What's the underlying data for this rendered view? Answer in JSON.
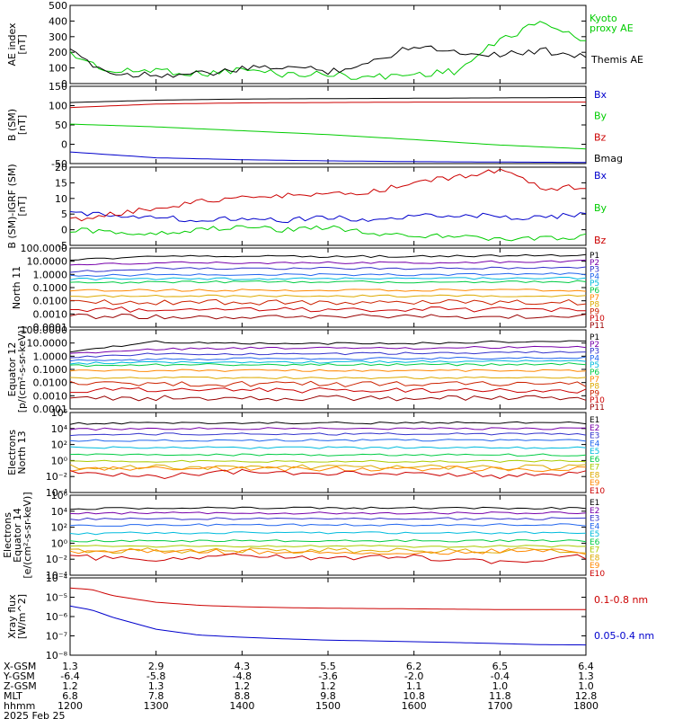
{
  "chart_data": [
    {
      "type": "line",
      "ylabel": [
        "AE index",
        "[nT]"
      ],
      "ylim": [
        0,
        500
      ],
      "yticks": [
        "500",
        "400",
        "300",
        "200",
        "100",
        "0"
      ],
      "yscale": "linear",
      "x": [
        12.0,
        12.5,
        13.0,
        13.5,
        14.0,
        14.5,
        15.0,
        15.5,
        16.0,
        16.5,
        17.0,
        17.5,
        18.0
      ],
      "series": [
        {
          "name": "Kyoto proxy AE",
          "color": "#00cc00",
          "values": [
            190,
            70,
            90,
            60,
            90,
            60,
            60,
            40,
            60,
            80,
            280,
            400,
            260
          ]
        },
        {
          "name": "Themis AE",
          "color": "#000000",
          "values": [
            200,
            60,
            60,
            60,
            90,
            110,
            80,
            130,
            250,
            200,
            190,
            210,
            180
          ]
        }
      ]
    },
    {
      "type": "line",
      "ylabel": [
        "B (SM)",
        "[nT]"
      ],
      "ylim": [
        -50,
        150
      ],
      "yticks": [
        "150",
        "100",
        "50",
        "0",
        "-50"
      ],
      "yscale": "linear",
      "x": [
        12.0,
        13.0,
        14.0,
        15.0,
        16.0,
        17.0,
        18.0
      ],
      "series": [
        {
          "name": "Bx",
          "color": "#0000cc",
          "values": [
            -20,
            -35,
            -40,
            -43,
            -45,
            -46,
            -47
          ]
        },
        {
          "name": "By",
          "color": "#00cc00",
          "values": [
            52,
            45,
            35,
            25,
            12,
            -2,
            -12
          ]
        },
        {
          "name": "Bz",
          "color": "#cc0000",
          "values": [
            95,
            104,
            107,
            108,
            109,
            109,
            109
          ]
        },
        {
          "name": "Bmag",
          "color": "#000000",
          "values": [
            108,
            114,
            117,
            118,
            119,
            120,
            121
          ]
        }
      ]
    },
    {
      "type": "line",
      "ylabel": [
        "B (SM)-IGRF (SM)",
        "[nT]"
      ],
      "ylim": [
        -5,
        20
      ],
      "yticks": [
        "20",
        "15",
        "10",
        "5",
        "0",
        "-5"
      ],
      "yscale": "linear",
      "x": [
        12.0,
        12.5,
        13.0,
        13.5,
        14.0,
        14.5,
        15.0,
        15.5,
        16.0,
        16.5,
        17.0,
        17.5,
        18.0
      ],
      "series": [
        {
          "name": "Bx",
          "color": "#0000cc",
          "values": [
            5,
            5,
            4,
            3,
            4,
            3,
            4,
            3,
            4,
            5,
            4,
            4,
            5
          ]
        },
        {
          "name": "By",
          "color": "#00cc00",
          "values": [
            0,
            -1,
            -1,
            0,
            1,
            0,
            1,
            -1,
            -2,
            -2,
            -3,
            -3,
            -2
          ]
        },
        {
          "name": "Bz",
          "color": "#cc0000",
          "values": [
            3,
            5,
            7,
            9,
            10,
            11,
            11,
            12,
            15,
            17,
            19,
            13,
            14
          ]
        }
      ]
    },
    {
      "type": "line",
      "ylabel": [
        "North 11"
      ],
      "ylim": [
        5e-05,
        200
      ],
      "yticks": [
        "100.0000",
        "10.0000",
        "1.0000",
        "0.1000",
        "0.0100",
        "0.0010",
        "0.0001"
      ],
      "yscale": "log",
      "x": [
        12.0,
        13.0,
        14.0,
        15.0,
        16.0,
        17.0,
        18.0
      ],
      "series": [
        {
          "name": "P1",
          "color": "#000000",
          "values": [
            20,
            45,
            40,
            40,
            40,
            45,
            50
          ]
        },
        {
          "name": "P2",
          "color": "#7700aa",
          "values": [
            8,
            12,
            12,
            12,
            12,
            14,
            16
          ]
        },
        {
          "name": "P3",
          "color": "#3333cc",
          "values": [
            2,
            4,
            4,
            4,
            4,
            4.5,
            5
          ]
        },
        {
          "name": "P4",
          "color": "#2266ee",
          "values": [
            1.0,
            1.2,
            1.2,
            1.2,
            1.2,
            1.3,
            1.4
          ]
        },
        {
          "name": "P5",
          "color": "#00bbdd",
          "values": [
            0.5,
            0.55,
            0.55,
            0.55,
            0.55,
            0.6,
            0.6
          ]
        },
        {
          "name": "P6",
          "color": "#00cc44",
          "values": [
            0.25,
            0.3,
            0.3,
            0.3,
            0.3,
            0.3,
            0.32
          ]
        },
        {
          "name": "P7",
          "color": "#ff8800",
          "values": [
            0.06,
            0.06,
            0.06,
            0.06,
            0.06,
            0.06,
            0.06
          ]
        },
        {
          "name": "P8",
          "color": "#ddaa00",
          "values": [
            0.02,
            0.02,
            0.02,
            0.02,
            0.02,
            0.02,
            0.02
          ]
        },
        {
          "name": "P9",
          "color": "#cc2200",
          "values": [
            0.006,
            0.006,
            0.006,
            0.006,
            0.006,
            0.006,
            0.006
          ]
        },
        {
          "name": "P10",
          "color": "#cc0000",
          "values": [
            0.0015,
            0.0015,
            0.0014,
            0.0015,
            0.0015,
            0.0015,
            0.0015
          ]
        },
        {
          "name": "P11",
          "color": "#990000",
          "values": [
            0.0004,
            0.0004,
            0.0004,
            0.0004,
            0.0004,
            0.0004,
            0.0004
          ]
        }
      ]
    },
    {
      "type": "line",
      "ylabel": [
        "Equator 12",
        "[p/(cm²-s-sr-keV)]"
      ],
      "ylim": [
        5e-05,
        200
      ],
      "yticks": [
        "100.0000",
        "10.0000",
        "1.0000",
        "0.1000",
        "0.0100",
        "0.0010",
        "0.0001"
      ],
      "yscale": "log",
      "x": [
        12.0,
        13.0,
        14.0,
        15.0,
        16.0,
        17.0,
        18.0
      ],
      "series": [
        {
          "name": "P1",
          "color": "#000000",
          "values": [
            3,
            20,
            15,
            15,
            15,
            20,
            25
          ]
        },
        {
          "name": "P2",
          "color": "#7700aa",
          "values": [
            2,
            5,
            6,
            6,
            6,
            7,
            8
          ]
        },
        {
          "name": "P3",
          "color": "#3333cc",
          "values": [
            1,
            2,
            2,
            2,
            2.2,
            2.5,
            3
          ]
        },
        {
          "name": "P4",
          "color": "#2266ee",
          "values": [
            0.5,
            0.7,
            0.8,
            0.8,
            0.8,
            0.9,
            1.0
          ]
        },
        {
          "name": "P5",
          "color": "#00bbdd",
          "values": [
            0.3,
            0.4,
            0.4,
            0.4,
            0.45,
            0.45,
            0.5
          ]
        },
        {
          "name": "P6",
          "color": "#00cc44",
          "values": [
            0.2,
            0.25,
            0.25,
            0.25,
            0.25,
            0.25,
            0.3
          ]
        },
        {
          "name": "P7",
          "color": "#ff8800",
          "values": [
            0.08,
            0.08,
            0.08,
            0.08,
            0.08,
            0.08,
            0.08
          ]
        },
        {
          "name": "P8",
          "color": "#ddaa00",
          "values": [
            0.02,
            0.02,
            0.02,
            0.02,
            0.02,
            0.02,
            0.02
          ]
        },
        {
          "name": "P9",
          "color": "#cc2200",
          "values": [
            0.006,
            0.006,
            0.006,
            0.006,
            0.006,
            0.006,
            0.006
          ]
        },
        {
          "name": "P10",
          "color": "#cc0000",
          "values": [
            0.0018,
            0.0018,
            0.0018,
            0.0018,
            0.0018,
            0.0018,
            0.0018
          ]
        },
        {
          "name": "P11",
          "color": "#990000",
          "values": [
            0.0004,
            0.0004,
            0.0004,
            0.0004,
            0.0004,
            0.0004,
            0.0004
          ]
        }
      ]
    },
    {
      "type": "line",
      "ylabel": [
        "Electrons",
        "North 13"
      ],
      "ylim": [
        0.0001,
        1000000
      ],
      "yticks": [
        "10⁶",
        "10⁴",
        "10²",
        "10⁰",
        "10⁻²",
        "10⁻⁴"
      ],
      "yscale": "log",
      "x": [
        12.0,
        13.0,
        14.0,
        15.0,
        16.0,
        17.0,
        18.0
      ],
      "series": [
        {
          "name": "E1",
          "color": "#000000",
          "values": [
            40000,
            50000,
            50000,
            50000,
            50000,
            50000,
            50000
          ]
        },
        {
          "name": "E2",
          "color": "#7700aa",
          "values": [
            8000,
            10000,
            10000,
            10000,
            10000,
            10000,
            10000
          ]
        },
        {
          "name": "E3",
          "color": "#3333cc",
          "values": [
            1500,
            2000,
            2000,
            2000,
            2000,
            2000,
            2000
          ]
        },
        {
          "name": "E4",
          "color": "#2266ee",
          "values": [
            300,
            350,
            350,
            350,
            350,
            350,
            350
          ]
        },
        {
          "name": "E5",
          "color": "#00bbdd",
          "values": [
            40,
            40,
            40,
            40,
            40,
            40,
            40
          ]
        },
        {
          "name": "E6",
          "color": "#00cc44",
          "values": [
            5,
            5,
            5,
            5,
            5,
            5,
            5
          ]
        },
        {
          "name": "E7",
          "color": "#aacc00",
          "values": [
            0.8,
            0.8,
            0.8,
            0.8,
            0.8,
            0.8,
            0.8
          ]
        },
        {
          "name": "E8",
          "color": "#ddaa00",
          "values": [
            0.15,
            0.15,
            0.15,
            0.15,
            0.15,
            0.15,
            0.15
          ]
        },
        {
          "name": "E9",
          "color": "#ff8800",
          "values": [
            0.08,
            0.1,
            0.08,
            0.1,
            0.08,
            0.1,
            0.08
          ]
        },
        {
          "name": "E10",
          "color": "#cc0000",
          "values": [
            0.03,
            0.01,
            0.05,
            0.02,
            0.04,
            0.01,
            0.03
          ]
        }
      ]
    },
    {
      "type": "line",
      "ylabel": [
        "Electrons",
        "Equator 14",
        "[e/(cm²-s-sr-keV)]"
      ],
      "ylim": [
        0.0001,
        1000000
      ],
      "yticks": [
        "10⁶",
        "10⁴",
        "10²",
        "10⁰",
        "10⁻²",
        "10⁻⁴"
      ],
      "yscale": "log",
      "x": [
        12.0,
        13.0,
        14.0,
        15.0,
        16.0,
        17.0,
        18.0
      ],
      "series": [
        {
          "name": "E1",
          "color": "#000000",
          "values": [
            20000,
            25000,
            25000,
            25000,
            25000,
            25000,
            25000
          ]
        },
        {
          "name": "E2",
          "color": "#7700aa",
          "values": [
            5000,
            6000,
            6000,
            6000,
            6000,
            6000,
            6000
          ]
        },
        {
          "name": "E3",
          "color": "#3333cc",
          "values": [
            1000,
            1200,
            1200,
            1200,
            1200,
            1200,
            1200
          ]
        },
        {
          "name": "E4",
          "color": "#2266ee",
          "values": [
            150,
            200,
            200,
            200,
            200,
            200,
            200
          ]
        },
        {
          "name": "E5",
          "color": "#00bbdd",
          "values": [
            15,
            20,
            20,
            20,
            20,
            20,
            20
          ]
        },
        {
          "name": "E6",
          "color": "#00cc44",
          "values": [
            2,
            2,
            2,
            2,
            2,
            2,
            2
          ]
        },
        {
          "name": "E7",
          "color": "#aacc00",
          "values": [
            0.4,
            0.4,
            0.4,
            0.4,
            0.4,
            0.4,
            0.4
          ]
        },
        {
          "name": "E8",
          "color": "#ddaa00",
          "values": [
            0.12,
            0.12,
            0.12,
            0.12,
            0.12,
            0.12,
            0.12
          ]
        },
        {
          "name": "E9",
          "color": "#ff8800",
          "values": [
            0.08,
            0.1,
            0.08,
            0.09,
            0.08,
            0.1,
            0.08
          ]
        },
        {
          "name": "E10",
          "color": "#cc0000",
          "values": [
            0.02,
            0.01,
            0.03,
            0.01,
            0.02,
            0.005,
            0.02
          ]
        }
      ]
    },
    {
      "type": "line",
      "ylabel": [
        "Xray flux",
        "[W/m^2]"
      ],
      "ylim": [
        1e-08,
        0.0001
      ],
      "yticks": [
        "10⁻⁴",
        "10⁻⁵",
        "10⁻⁶",
        "10⁻⁷",
        "10⁻⁸"
      ],
      "yscale": "log",
      "x": [
        12.0,
        12.25,
        12.5,
        13.0,
        13.5,
        14.0,
        14.5,
        15.0,
        15.5,
        16.0,
        16.5,
        17.0,
        17.5,
        18.0
      ],
      "series": [
        {
          "name": "0.1-0.8 nm",
          "color": "#cc0000",
          "values": [
            3e-05,
            2.5e-05,
            1.2e-05,
            5.5e-06,
            3.8e-06,
            3.2e-06,
            2.9e-06,
            2.7e-06,
            2.6e-06,
            2.5e-06,
            2.4e-06,
            2.3e-06,
            2.3e-06,
            2.3e-06
          ]
        },
        {
          "name": "0.05-0.4 nm",
          "color": "#0000cc",
          "values": [
            3.5e-06,
            2.2e-06,
            9e-07,
            2.2e-07,
            1.1e-07,
            8.5e-08,
            7e-08,
            6e-08,
            5.5e-08,
            5e-08,
            4.5e-08,
            4e-08,
            3.5e-08,
            3.4e-08
          ]
        }
      ]
    }
  ],
  "panel_labels": [
    {
      "text": [
        "Kyoto",
        "proxy AE"
      ],
      "color": "#00cc00"
    },
    {
      "text": [
        "Themis AE"
      ],
      "color": "#000000"
    }
  ],
  "orbit": {
    "row_labels": [
      "X-GSM",
      "Y-GSM",
      "Z-GSM",
      "MLT",
      "hhmm"
    ],
    "date": "2025 Feb 25",
    "columns": [
      [
        "1.3",
        "-6.4",
        "1.2",
        "6.8",
        "1200"
      ],
      [
        "2.9",
        "-5.8",
        "1.3",
        "7.8",
        "1300"
      ],
      [
        "4.3",
        "-4.8",
        "1.2",
        "8.8",
        "1400"
      ],
      [
        "5.5",
        "-3.6",
        "1.2",
        "9.8",
        "1500"
      ],
      [
        "6.2",
        "-2.0",
        "1.1",
        "10.8",
        "1600"
      ],
      [
        "6.5",
        "-0.4",
        "1.0",
        "11.8",
        "1700"
      ],
      [
        "6.4",
        "1.3",
        "1.0",
        "12.8",
        "1800"
      ]
    ]
  }
}
